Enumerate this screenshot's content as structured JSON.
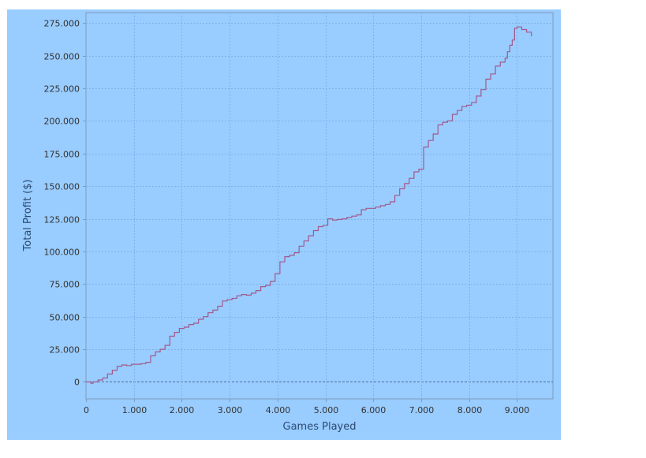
{
  "chart_data": {
    "type": "line",
    "title": "",
    "xlabel": "Games Played",
    "ylabel": "Total Profit ($)",
    "xlim": [
      0,
      9750
    ],
    "ylim": [
      -13000,
      283000
    ],
    "x_ticks": [
      0,
      1000,
      2000,
      3000,
      4000,
      5000,
      6000,
      7000,
      8000,
      9000
    ],
    "x_tick_labels": [
      "0",
      "1.000",
      "2.000",
      "3.000",
      "4.000",
      "5.000",
      "6.000",
      "7.000",
      "8.000",
      "9.000"
    ],
    "y_ticks": [
      0,
      25000,
      50000,
      75000,
      100000,
      125000,
      150000,
      175000,
      200000,
      225000,
      250000,
      275000
    ],
    "y_tick_labels": [
      "0",
      "25.000",
      "50.000",
      "75.000",
      "100.000",
      "125.000",
      "150.000",
      "175.000",
      "200.000",
      "225.000",
      "250.000",
      "275.000"
    ],
    "grid": true,
    "zero_line": true,
    "colors": {
      "panel_bg": "#99ccff",
      "plot_bg": "#99ccff",
      "line": "#a05a8c",
      "grid": "#7fb2e6",
      "axis": "#7f9bbd"
    },
    "series": [
      {
        "name": "",
        "x": [
          0,
          100,
          150,
          250,
          350,
          450,
          550,
          650,
          750,
          850,
          950,
          1050,
          1150,
          1250,
          1350,
          1450,
          1550,
          1650,
          1750,
          1850,
          1950,
          2050,
          2150,
          2250,
          2350,
          2450,
          2550,
          2650,
          2750,
          2850,
          2950,
          3050,
          3150,
          3250,
          3350,
          3450,
          3550,
          3650,
          3750,
          3850,
          3950,
          4050,
          4150,
          4250,
          4350,
          4450,
          4550,
          4650,
          4750,
          4850,
          4950,
          5050,
          5150,
          5250,
          5350,
          5450,
          5550,
          5650,
          5750,
          5850,
          5950,
          6050,
          6150,
          6250,
          6350,
          6450,
          6550,
          6650,
          6750,
          6850,
          6950,
          7050,
          7150,
          7250,
          7350,
          7450,
          7550,
          7650,
          7750,
          7850,
          7950,
          8050,
          8150,
          8250,
          8350,
          8450,
          8550,
          8650,
          8750,
          8800,
          8850,
          8900,
          8950,
          9000,
          9100,
          9200,
          9300
        ],
        "y": [
          0,
          -1000,
          0,
          1500,
          3000,
          6000,
          9000,
          12000,
          13000,
          12500,
          13500,
          13500,
          14000,
          15000,
          20000,
          23000,
          25000,
          28000,
          35000,
          38000,
          41000,
          42000,
          44000,
          45000,
          48000,
          50000,
          53000,
          55000,
          58000,
          62000,
          63000,
          64000,
          66000,
          67000,
          66500,
          68000,
          70000,
          73000,
          74000,
          77000,
          83000,
          92000,
          96000,
          97000,
          99000,
          104000,
          108000,
          112000,
          116000,
          119000,
          120000,
          125000,
          124000,
          124500,
          125000,
          126000,
          127000,
          128000,
          132000,
          133000,
          133000,
          134000,
          135000,
          136000,
          138000,
          143000,
          148000,
          152000,
          156000,
          161000,
          163000,
          180000,
          185000,
          190000,
          197000,
          199000,
          200000,
          205000,
          208000,
          211000,
          212000,
          214000,
          219000,
          224000,
          232000,
          236000,
          242000,
          245000,
          248000,
          253000,
          258000,
          262000,
          271000,
          272000,
          270000,
          268000,
          265000
        ]
      }
    ]
  }
}
